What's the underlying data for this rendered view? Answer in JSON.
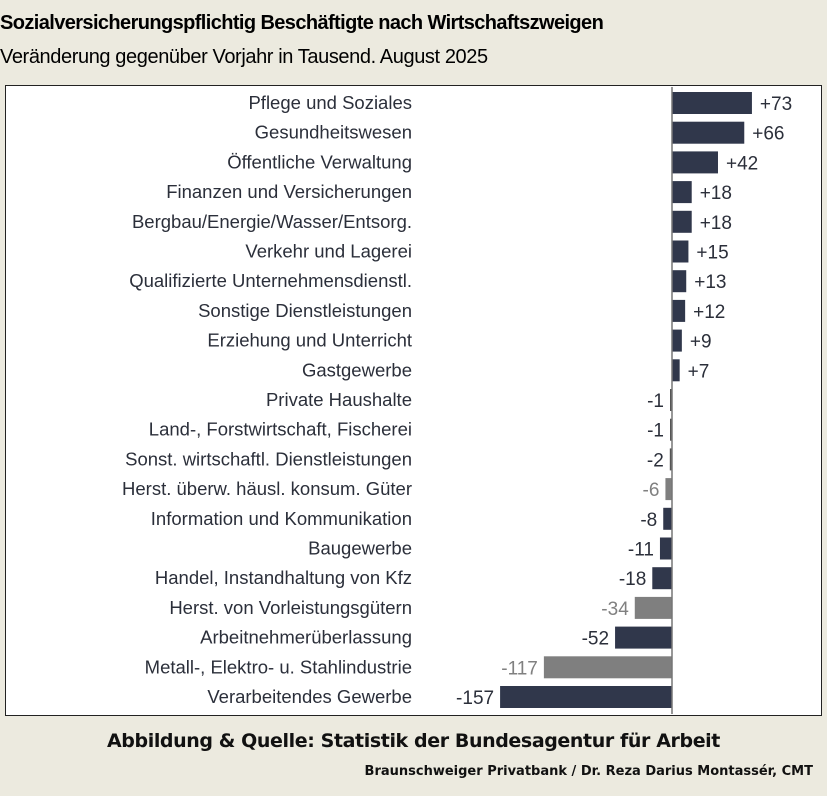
{
  "chart_data": {
    "type": "bar",
    "orientation": "horizontal",
    "title": "Sozialversicherungspflichtig Beschäftigte nach Wirtschaftszweigen",
    "subtitle": "Veränderung gegenüber Vorjahr in Tausend. August 2025",
    "categories": [
      "Pflege und Soziales",
      "Gesundheitswesen",
      "Öffentliche Verwaltung",
      "Finanzen und Versicherungen",
      "Bergbau/Energie/Wasser/Entsorg.",
      "Verkehr und Lagerei",
      "Qualifizierte Unternehmensdienstl.",
      "Sonstige Dienstleistungen",
      "Erziehung und Unterricht",
      "Gastgewerbe",
      "Private Haushalte",
      "Land-, Forstwirtschaft, Fischerei",
      "Sonst. wirtschaftl. Dienstleistungen",
      "Herst. überw. häusl. konsum. Güter",
      "Information und Kommunikation",
      "Baugewerbe",
      "Handel, Instandhaltung von Kfz",
      "Herst. von Vorleistungsgütern",
      "Arbeitnehmerüberlassung",
      "Metall-, Elektro- u. Stahlindustrie",
      "Verarbeitendes Gewerbe"
    ],
    "values": [
      73,
      66,
      42,
      18,
      18,
      15,
      13,
      12,
      9,
      7,
      -1,
      -1,
      -2,
      -6,
      -8,
      -11,
      -18,
      -34,
      -52,
      -117,
      -157
    ],
    "value_labels": [
      "+73",
      "+66",
      "+42",
      "+18",
      "+18",
      "+15",
      "+13",
      "+12",
      "+9",
      "+7",
      "-1",
      "-1",
      "-2",
      "-6",
      "-8",
      "-11",
      "-18",
      "-34",
      "-52",
      "-117",
      "-157"
    ],
    "subcategory": [
      false,
      false,
      false,
      false,
      false,
      false,
      false,
      false,
      false,
      false,
      false,
      false,
      false,
      true,
      false,
      false,
      false,
      true,
      false,
      true,
      false
    ],
    "xlim": [
      -157,
      73
    ],
    "grid": false,
    "colors": {
      "main": "#30374b",
      "sub": "#7f7f7f",
      "small": "#555555"
    }
  },
  "footer": {
    "source": "Abbildung & Quelle: Statistik der Bundesagentur für Arbeit",
    "author": "Braunschweiger Privatbank / Dr. Reza Darius Montassér, CMT"
  }
}
